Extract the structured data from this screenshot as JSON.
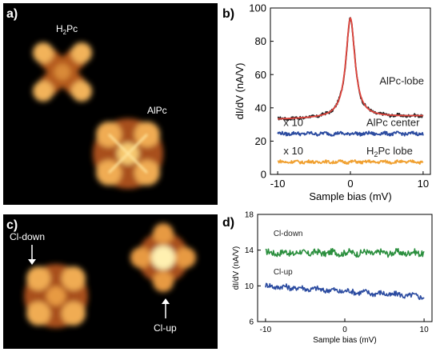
{
  "panel_a": {
    "letter": "a)",
    "molecule_labels": [
      {
        "sym": "H",
        "sub": "2",
        "rest": "Pc"
      },
      {
        "sym": "AlPc",
        "sub": "",
        "rest": ""
      }
    ]
  },
  "panel_c": {
    "letter": "c)",
    "annotations": [
      "Cl-down",
      "Cl-up"
    ]
  },
  "chart_data": [
    {
      "panel": "b)",
      "type": "line",
      "xlabel": "Sample bias (mV)",
      "ylabel": "dI/dV (nA/V)",
      "xlim": [
        -11,
        11
      ],
      "ylim": [
        0,
        100
      ],
      "xticks": [
        -10,
        0,
        10
      ],
      "yticks": [
        0,
        20,
        40,
        60,
        80,
        100
      ],
      "grid": false,
      "series": [
        {
          "name": "AlPc-lobe",
          "color": "#231f20",
          "type": "lorentzian-peak",
          "baseline": 33,
          "peak": 93,
          "x0": 0,
          "width": 0.75,
          "slope": 0.4,
          "noise": 0.9,
          "xrange": [
            -10,
            10
          ]
        },
        {
          "name": "AlPc-lobe fit",
          "color": "#e0443c",
          "type": "lorentzian-peak",
          "baseline": 33,
          "peak": 93,
          "x0": 0,
          "width": 0.75,
          "slope": 0.4,
          "noise": 0,
          "xrange": [
            -10,
            10
          ]
        },
        {
          "name": "AlPc center",
          "color": "#2b4ba0",
          "type": "flat-noisy",
          "baseline": 24.5,
          "noise": 1.0,
          "xrange": [
            -10,
            10
          ]
        },
        {
          "name": "H2Pc lobe",
          "color": "#f0a030",
          "type": "flat-noisy",
          "baseline": 7.5,
          "noise": 0.9,
          "xrange": [
            -10,
            10
          ]
        }
      ],
      "annotations": [
        {
          "text": "AlPc-lobe",
          "x": 4.0,
          "y": 54
        },
        {
          "text": "x 10",
          "x": -9.2,
          "y": 29
        },
        {
          "text": "AlPc center",
          "x": 2.2,
          "y": 29
        },
        {
          "text": "x 10",
          "x": -9.2,
          "y": 12
        },
        {
          "text": "H",
          "sub": "2",
          "rest": "Pc lobe",
          "x": 2.2,
          "y": 12
        }
      ]
    },
    {
      "panel": "d)",
      "type": "line",
      "xlabel": "Sample bias (mV)",
      "ylabel": "dI/dV (nA/V)",
      "xlim": [
        -11,
        11
      ],
      "ylim": [
        6,
        18
      ],
      "xticks": [
        -10,
        0,
        10
      ],
      "yticks": [
        6,
        10,
        14,
        18
      ],
      "grid": false,
      "series": [
        {
          "name": "Cl-down",
          "color": "#2b8f3e",
          "type": "flat-noisy",
          "baseline": 13.7,
          "slope": 0,
          "noise": 0.35,
          "xrange": [
            -10,
            10
          ]
        },
        {
          "name": "Cl-up",
          "color": "#2b4ba0",
          "type": "flat-noisy",
          "baseline": 9.4,
          "slope": -0.06,
          "noise": 0.3,
          "xrange": [
            -10,
            10
          ]
        }
      ],
      "annotations": [
        {
          "text": "Cl-down",
          "x": -9.0,
          "y": 15.6
        },
        {
          "text": "Cl-up",
          "x": -9.0,
          "y": 11.3
        }
      ]
    }
  ]
}
